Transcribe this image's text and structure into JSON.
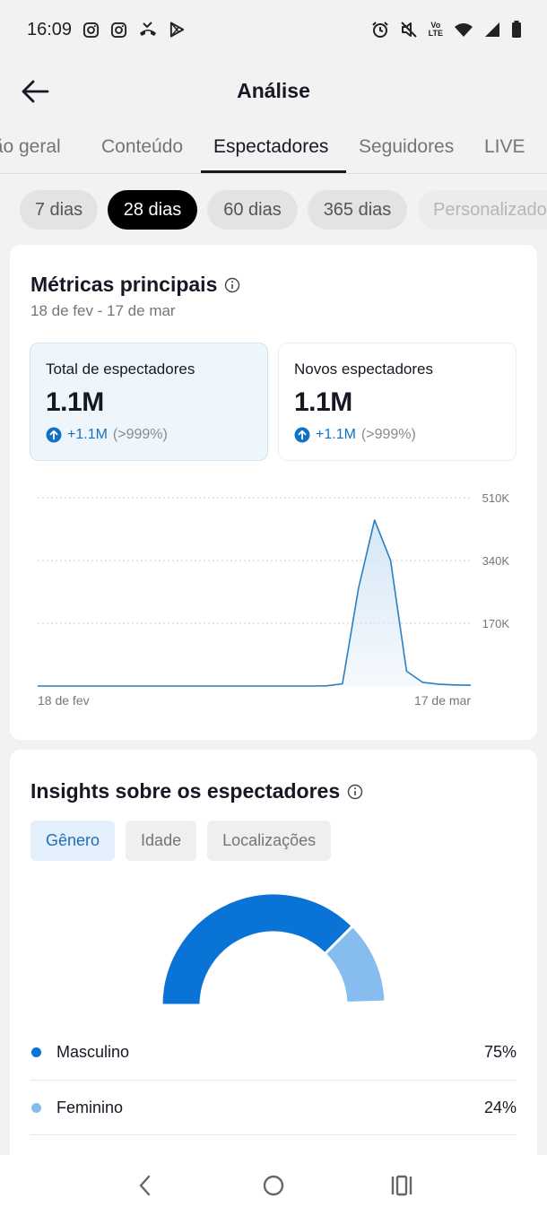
{
  "status_bar": {
    "time": "16:09"
  },
  "header": {
    "title": "Análise"
  },
  "tabs": [
    {
      "label": "Visão geral"
    },
    {
      "label": "Conteúdo"
    },
    {
      "label": "Espectadores"
    },
    {
      "label": "Seguidores"
    },
    {
      "label": "LIVE"
    }
  ],
  "periods": [
    {
      "label": "7 dias"
    },
    {
      "label": "28 dias"
    },
    {
      "label": "60 dias"
    },
    {
      "label": "365 dias"
    },
    {
      "label": "Personalizado"
    }
  ],
  "metrics": {
    "title": "Métricas principais",
    "date_range": "18 de fev - 17 de mar",
    "total": {
      "label": "Total de espectadores",
      "value": "1.1M",
      "change": "+1.1M",
      "pct": "(>999%)"
    },
    "new": {
      "label": "Novos espectadores",
      "value": "1.1M",
      "change": "+1.1M",
      "pct": "(>999%)"
    }
  },
  "chart_data": {
    "type": "area",
    "x": [
      "18 de fev",
      "19 de fev",
      "20 de fev",
      "21 de fev",
      "22 de fev",
      "23 de fev",
      "24 de fev",
      "25 de fev",
      "26 de fev",
      "27 de fev",
      "28 de fev",
      "1 de mar",
      "2 de mar",
      "3 de mar",
      "4 de mar",
      "5 de mar",
      "6 de mar",
      "7 de mar",
      "8 de mar",
      "9 de mar",
      "10 de mar",
      "11 de mar",
      "12 de mar",
      "13 de mar",
      "14 de mar",
      "15 de mar",
      "16 de mar",
      "17 de mar"
    ],
    "x_tick_labels": [
      "18 de fev",
      "17 de mar"
    ],
    "y_tick_labels": [
      "170K",
      "340K",
      "510K"
    ],
    "y_ticks": [
      170000,
      340000,
      510000
    ],
    "ylim": [
      0,
      525000
    ],
    "series": [
      {
        "values": [
          0,
          0,
          0,
          0,
          0,
          0,
          0,
          0,
          0,
          0,
          0,
          0,
          0,
          0,
          0,
          0,
          0,
          0,
          500,
          6000,
          265000,
          450000,
          340000,
          40000,
          10000,
          5000,
          3000,
          2000
        ]
      }
    ],
    "colors": {
      "line": "#2a7fc1",
      "fill": "#d6e7f7",
      "grid": "#cfcfcf"
    },
    "grid": true
  },
  "insights": {
    "title": "Insights sobre os espectadores",
    "segments": [
      {
        "label": "Gênero"
      },
      {
        "label": "Idade"
      },
      {
        "label": "Localizações"
      }
    ],
    "legend": [
      {
        "label": "Masculino",
        "value": "75%",
        "share": 0.75,
        "color": "#0a74d6"
      },
      {
        "label": "Feminino",
        "value": "24%",
        "share": 0.24,
        "color": "#86bdee"
      }
    ]
  },
  "colors": {
    "accent": "#1273c2",
    "active_chip": "#000000"
  }
}
